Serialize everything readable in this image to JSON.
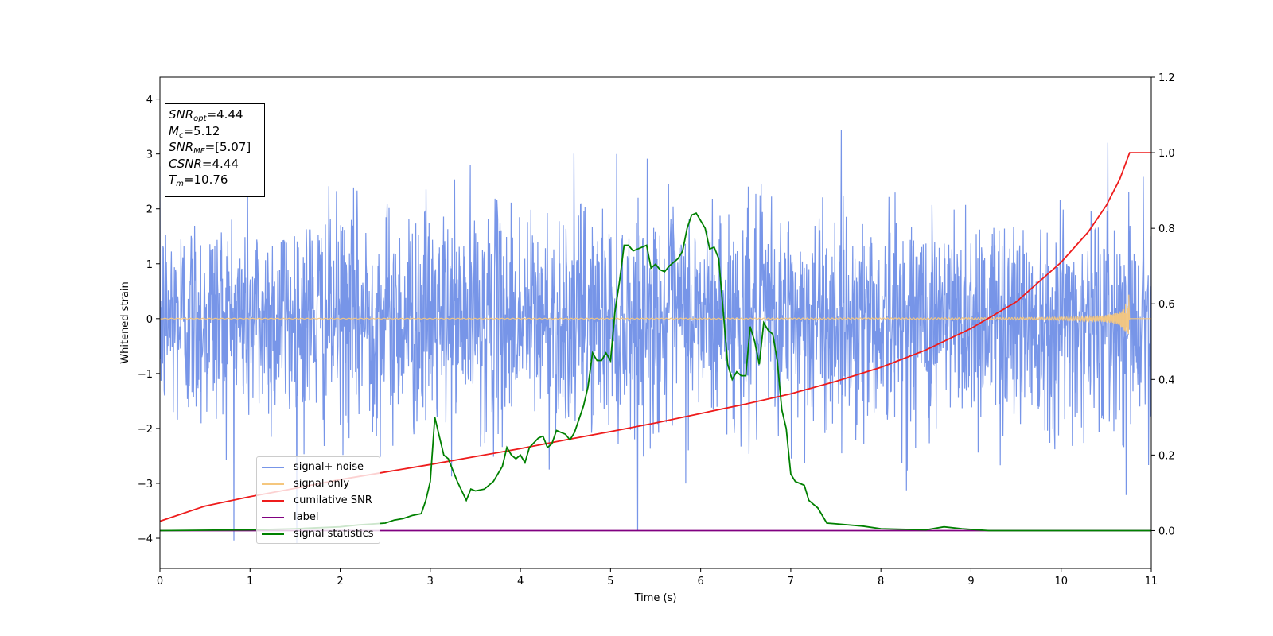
{
  "chart_data": {
    "type": "line",
    "xlabel": "Time (s)",
    "ylabel_left": "Whitened strain",
    "ylabel_right": "",
    "xlim": [
      0,
      11
    ],
    "ylim_left": [
      -4.55,
      4.4
    ],
    "ylim_right": [
      -0.1,
      1.2
    ],
    "x_ticks": [
      "0",
      "1",
      "2",
      "3",
      "4",
      "5",
      "6",
      "7",
      "8",
      "9",
      "10",
      "11"
    ],
    "y_ticks_left": [
      "4",
      "3",
      "2",
      "1",
      "0",
      "−1",
      "−2",
      "−3",
      "−4"
    ],
    "y_ticks_right": [
      "1.2",
      "1.0",
      "0.8",
      "0.6",
      "0.4",
      "0.2",
      "0.0"
    ],
    "grid": false,
    "legend_position": "lower-left",
    "series": [
      {
        "name": "signal+ noise",
        "axis": "left",
        "color": "#7795e8",
        "description_values": "noise, approx. ±2 strain with spikes to ~4"
      },
      {
        "name": "signal only",
        "axis": "left",
        "color": "#f5c77e",
        "chirp_end_time": 10.76,
        "chirp_peak_amplitude": 0.45
      },
      {
        "name": "cumilative SNR",
        "axis": "right",
        "color": "#ee1c1c",
        "x": [
          0,
          0.5,
          1,
          1.5,
          2,
          2.5,
          3,
          3.5,
          4,
          4.5,
          5,
          5.5,
          6,
          6.5,
          7,
          7.5,
          8,
          8.5,
          9,
          9.5,
          10,
          10.3,
          10.5,
          10.65,
          10.76,
          11
        ],
        "y": [
          0.025,
          0.065,
          0.09,
          0.112,
          0.135,
          0.155,
          0.175,
          0.196,
          0.217,
          0.24,
          0.262,
          0.285,
          0.31,
          0.335,
          0.362,
          0.395,
          0.432,
          0.478,
          0.535,
          0.605,
          0.71,
          0.79,
          0.86,
          0.93,
          1.0,
          1.0
        ]
      },
      {
        "name": "label",
        "axis": "right",
        "color": "#800080",
        "x": [
          0,
          11
        ],
        "y": [
          0.0,
          0.0
        ]
      },
      {
        "name": "signal statistics",
        "axis": "right",
        "color": "#008000",
        "x": [
          0,
          1,
          1.5,
          2,
          2.2,
          2.5,
          2.6,
          2.7,
          2.8,
          2.9,
          2.95,
          3.0,
          3.05,
          3.1,
          3.15,
          3.2,
          3.25,
          3.3,
          3.4,
          3.45,
          3.5,
          3.6,
          3.7,
          3.8,
          3.85,
          3.9,
          3.95,
          4.0,
          4.05,
          4.1,
          4.2,
          4.25,
          4.3,
          4.35,
          4.4,
          4.45,
          4.5,
          4.55,
          4.6,
          4.7,
          4.75,
          4.8,
          4.85,
          4.9,
          4.95,
          5.0,
          5.05,
          5.1,
          5.15,
          5.2,
          5.25,
          5.3,
          5.35,
          5.4,
          5.45,
          5.5,
          5.55,
          5.6,
          5.65,
          5.7,
          5.75,
          5.8,
          5.85,
          5.9,
          5.95,
          6.0,
          6.05,
          6.1,
          6.15,
          6.2,
          6.25,
          6.3,
          6.35,
          6.4,
          6.45,
          6.5,
          6.55,
          6.6,
          6.65,
          6.7,
          6.75,
          6.8,
          6.85,
          6.9,
          6.95,
          7.0,
          7.05,
          7.1,
          7.15,
          7.2,
          7.25,
          7.3,
          7.4,
          7.5,
          7.6,
          7.8,
          8.0,
          8.5,
          8.7,
          8.9,
          9.2,
          10,
          11
        ],
        "y": [
          0,
          0.002,
          0.005,
          0.01,
          0.015,
          0.02,
          0.028,
          0.032,
          0.04,
          0.045,
          0.08,
          0.13,
          0.3,
          0.25,
          0.2,
          0.19,
          0.16,
          0.13,
          0.08,
          0.11,
          0.105,
          0.11,
          0.13,
          0.17,
          0.22,
          0.2,
          0.19,
          0.2,
          0.18,
          0.22,
          0.245,
          0.25,
          0.22,
          0.23,
          0.265,
          0.26,
          0.255,
          0.24,
          0.26,
          0.33,
          0.38,
          0.47,
          0.45,
          0.45,
          0.47,
          0.45,
          0.58,
          0.66,
          0.755,
          0.755,
          0.74,
          0.745,
          0.75,
          0.755,
          0.695,
          0.705,
          0.69,
          0.685,
          0.7,
          0.71,
          0.72,
          0.74,
          0.8,
          0.835,
          0.84,
          0.82,
          0.8,
          0.745,
          0.75,
          0.72,
          0.58,
          0.44,
          0.4,
          0.42,
          0.41,
          0.41,
          0.54,
          0.5,
          0.44,
          0.55,
          0.53,
          0.52,
          0.45,
          0.32,
          0.27,
          0.15,
          0.13,
          0.125,
          0.12,
          0.08,
          0.07,
          0.06,
          0.02,
          0.018,
          0.016,
          0.012,
          0.005,
          0.002,
          0.01,
          0.005,
          0.0,
          0.0,
          0.0
        ]
      }
    ],
    "annotation_box": {
      "lines": [
        {
          "var": "SNR",
          "sub": "opt",
          "text": "=4.44"
        },
        {
          "var": "M",
          "sub": "c",
          "text": "=5.12"
        },
        {
          "var": "SNR",
          "sub": "MF",
          "text": "=[5.07]"
        },
        {
          "var": "CSNR",
          "sub": "",
          "text": "=4.44"
        },
        {
          "var": "T",
          "sub": "m",
          "text": "=10.76"
        }
      ]
    }
  }
}
